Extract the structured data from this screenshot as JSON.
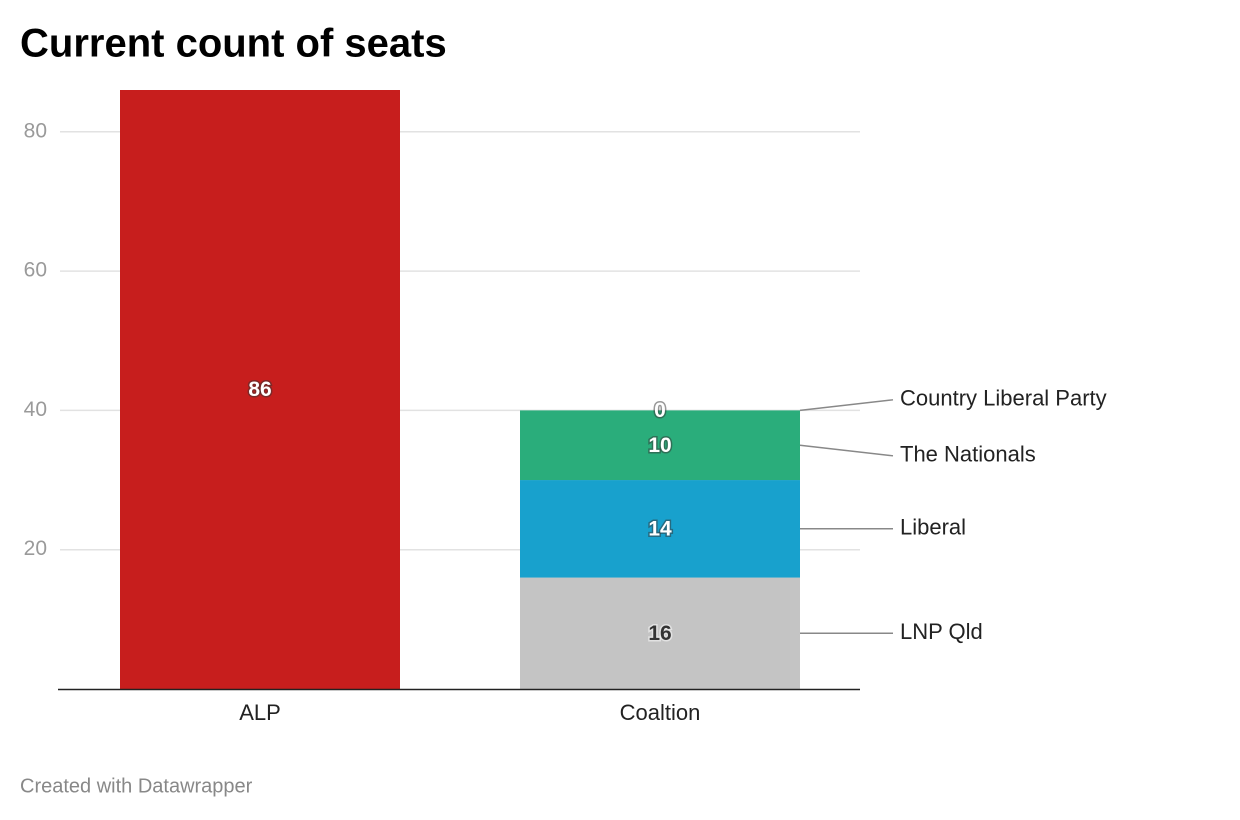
{
  "chart_data": {
    "type": "stacked_bar",
    "title": "Current count of seats",
    "footer": "Created with Datawrapper",
    "categories": [
      "ALP",
      "Coaltion"
    ],
    "series": [
      {
        "color": "#c71e1d",
        "values": [
          86,
          null
        ]
      },
      {
        "name": "LNP Qld",
        "color": "#c4c4c4",
        "values": [
          null,
          16
        ]
      },
      {
        "name": "Liberal",
        "color": "#18a1cd",
        "values": [
          null,
          14
        ]
      },
      {
        "name": "The Nationals",
        "color": "#2aad7b",
        "values": [
          null,
          10
        ]
      },
      {
        "name": "Country Liberal Party",
        "color": "#2aad7b",
        "values": [
          null,
          0
        ]
      }
    ],
    "ylim": [
      0,
      86
    ],
    "yticks": [
      20,
      40,
      60,
      80
    ],
    "grid": true
  }
}
